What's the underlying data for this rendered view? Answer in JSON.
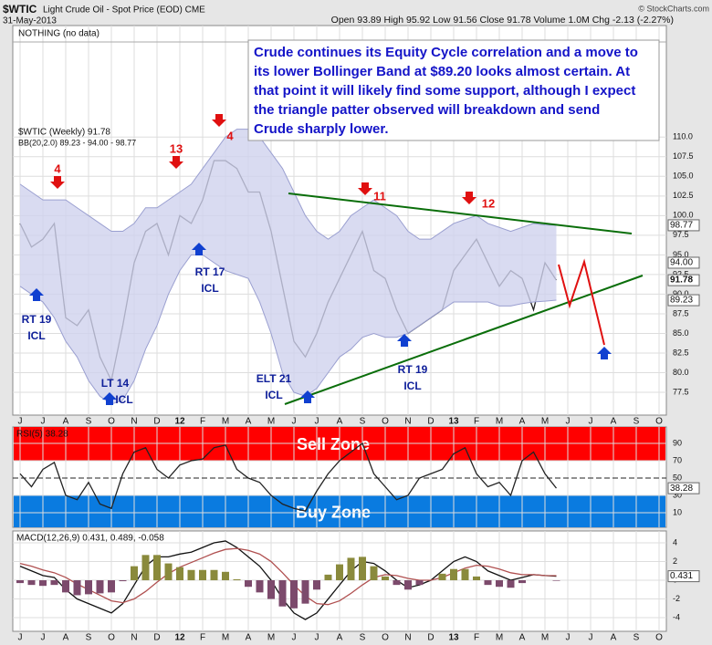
{
  "header": {
    "symbol": "$WTIC",
    "name": "Light Crude Oil - Spot Price (EOD) CME",
    "date": "31-May-2013",
    "quote": "Open 93.89  High 95.92  Low 91.56  Close 91.78  Volume 1.0M  Chg -2.13 (-2.27%)",
    "credit": "© StockCharts.com"
  },
  "note": "NOTHING (no data)",
  "comment": [
    "Crude continues its Equity Cycle correlation and a move to",
    "its lower Bollinger Band at $89.20 looks almost certain.  At",
    "that point it will likely find some support, although I expect",
    "the triangle patter observed will breakdown and send",
    "Crude sharply lower."
  ],
  "cycle_labels": [
    "4",
    "13",
    "4",
    "11",
    "12"
  ],
  "icl_labels": [
    [
      "RT 19",
      "ICL"
    ],
    [
      "LT 14",
      "ICL"
    ],
    [
      "RT 17",
      "ICL"
    ],
    [
      "ELT 21",
      "ICL"
    ],
    [
      "RT 19",
      "ICL"
    ]
  ],
  "chart_data": [
    {
      "type": "line",
      "categories": [
        "J",
        null,
        "J",
        null,
        "A",
        null,
        "S",
        null,
        "O",
        null,
        "N",
        null,
        "D",
        null,
        "12",
        null,
        "F",
        null,
        "M",
        null,
        "A",
        null,
        "M",
        null,
        "J",
        null,
        "J",
        null,
        "A",
        null,
        "S",
        null,
        "O",
        null,
        "N",
        null,
        "D",
        null,
        "13",
        null,
        "F",
        null,
        "M",
        null,
        "A",
        null,
        "M",
        null,
        "J",
        null,
        "J",
        null,
        "A",
        null,
        "S",
        null,
        "O",
        null
      ],
      "series": [
        {
          "name": "$WTIC (Weekly) 91.78",
          "color": "#222222",
          "values": [
            99,
            96,
            97,
            99,
            87,
            86,
            88,
            82,
            79,
            86,
            94,
            98,
            99,
            95,
            100,
            99,
            102,
            107,
            107,
            106,
            103,
            103,
            98,
            91,
            84,
            82,
            85,
            89,
            92,
            95,
            98,
            93,
            92,
            88,
            85,
            86,
            87,
            88,
            93,
            95,
            97,
            94,
            91,
            93,
            92,
            88,
            94,
            91.78,
            null,
            null,
            null,
            null,
            null,
            null,
            null,
            null,
            null,
            null
          ]
        },
        {
          "name": "BB(20,2.0) 89.23 - 94.00 - 98.77",
          "color": "#9a9fd0",
          "upper": [
            104,
            103,
            102,
            102,
            102,
            101,
            100,
            99,
            98,
            98,
            99,
            101,
            101,
            102,
            103,
            104,
            106,
            108,
            110,
            111,
            111,
            110,
            108,
            106,
            103,
            100,
            98,
            97,
            98,
            100,
            101,
            102,
            101,
            100,
            98,
            97,
            97,
            98,
            99,
            99.5,
            100,
            99,
            98.5,
            98,
            98.5,
            99,
            98.8,
            98.77,
            null,
            null,
            null,
            null,
            null,
            null,
            null,
            null,
            null,
            null
          ],
          "lower": [
            91,
            90,
            89,
            87,
            84,
            82,
            79,
            77,
            76,
            76.5,
            79,
            83,
            86,
            90,
            93,
            95,
            95,
            94,
            93,
            92.5,
            92,
            89,
            85,
            80,
            77.5,
            77,
            78,
            80,
            82,
            83,
            84.5,
            85,
            84.5,
            84.5,
            85,
            86,
            87,
            88,
            89,
            89,
            89,
            89,
            88.5,
            88.5,
            88.8,
            89,
            89.1,
            89.23,
            null,
            null,
            null,
            null,
            null,
            null,
            null,
            null,
            null,
            null
          ]
        }
      ],
      "ylim": [
        74.6,
        124.2
      ],
      "yticks": [
        {
          "value": 110,
          "label": "110.0"
        },
        {
          "value": 107.5,
          "label": "107.5"
        },
        {
          "value": 105,
          "label": "105.0"
        },
        {
          "value": 102.5,
          "label": "102.5"
        },
        {
          "value": 100,
          "label": "100.0"
        },
        {
          "value": 97.5,
          "label": "97.5"
        },
        {
          "value": 95,
          "label": "95.0"
        },
        {
          "value": 92.5,
          "label": "92.5"
        },
        {
          "value": 90,
          "label": "90.0"
        },
        {
          "value": 87.5,
          "label": "87.5"
        },
        {
          "value": 85,
          "label": "85.0"
        },
        {
          "value": 82.5,
          "label": "82.5"
        },
        {
          "value": 80,
          "label": "80.0"
        },
        {
          "value": 77.5,
          "label": "77.5"
        }
      ],
      "markers": [
        98.77,
        {
          "value": 94,
          "label": "94.00"
        },
        91.78,
        89.23
      ],
      "grid": true
    },
    {
      "type": "line",
      "title": "RSI(5) 38.28",
      "series": [
        {
          "color": "#222222",
          "values": [
            55,
            40,
            60,
            68,
            30,
            25,
            45,
            20,
            15,
            55,
            80,
            85,
            60,
            50,
            65,
            70,
            72,
            85,
            88,
            60,
            50,
            45,
            30,
            20,
            15,
            12,
            35,
            55,
            70,
            80,
            90,
            55,
            40,
            25,
            30,
            50,
            55,
            60,
            78,
            85,
            55,
            40,
            45,
            30,
            70,
            80,
            55,
            38.28,
            null,
            null,
            null,
            null,
            null,
            null,
            null,
            null,
            null,
            null
          ]
        }
      ],
      "zones": [
        {
          "label": "Sell Zone",
          "from": 70,
          "color": "#ff0000"
        },
        {
          "label": "Buy Zone",
          "to": 30,
          "color": "#0a7be0"
        }
      ],
      "ylim": [
        -6.8,
        108.9
      ],
      "yticks": [
        90,
        70,
        50,
        30,
        10
      ],
      "markers": [
        38.28
      ],
      "grid": true
    },
    {
      "type": "line",
      "title": "MACD(12,26,9) 0.431, 0.489, -0.058",
      "series": [
        {
          "color": "#111111",
          "values": [
            1.5,
            1,
            0.5,
            0.3,
            -1,
            -2,
            -2.5,
            -3,
            -3.5,
            -2.5,
            -0.5,
            1.5,
            2.5,
            2.5,
            2.8,
            3,
            3.5,
            4,
            4.2,
            3.5,
            2.5,
            1.5,
            0,
            -2,
            -3.5,
            -4.2,
            -3.5,
            -2,
            -0.5,
            1,
            2,
            1.8,
            1,
            0,
            -0.8,
            -0.5,
            0,
            1,
            2,
            2.5,
            2,
            1,
            0.5,
            0,
            0.3,
            0.6,
            0.5,
            0.431,
            null,
            null,
            null,
            null,
            null,
            null,
            null,
            null,
            null,
            null
          ]
        },
        {
          "color": "#b05050",
          "values": [
            1.8,
            1.5,
            1.1,
            0.8,
            0.3,
            -0.4,
            -1,
            -1.6,
            -2.2,
            -2.4,
            -2,
            -1.2,
            -0.2,
            0.7,
            1.4,
            1.9,
            2.4,
            2.9,
            3.3,
            3.4,
            3.2,
            2.8,
            2,
            0.8,
            -0.5,
            -1.7,
            -2.5,
            -2.6,
            -2.2,
            -1.4,
            -0.5,
            0.3,
            0.6,
            0.5,
            0.2,
            0,
            0,
            0.3,
            0.8,
            1.3,
            1.6,
            1.5,
            1.2,
            0.8,
            0.6,
            0.6,
            0.5,
            0.489,
            null,
            null,
            null,
            null,
            null,
            null,
            null,
            null,
            null,
            null
          ]
        },
        {
          "color": "#8a8a3c",
          "kind": "histogram",
          "values": [
            -0.3,
            -0.5,
            -0.6,
            -0.5,
            -1.3,
            -1.6,
            -1.5,
            -1.4,
            -1.3,
            -0.1,
            1.5,
            2.7,
            2.7,
            1.8,
            1.4,
            1.1,
            1.1,
            1.1,
            0.9,
            0.1,
            -0.7,
            -1.3,
            -2,
            -2.8,
            -3,
            -2.5,
            -1,
            0.6,
            1.7,
            2.4,
            2.5,
            1.5,
            0.4,
            -0.5,
            -1,
            -0.5,
            0,
            0.7,
            1.2,
            1.2,
            0.4,
            -0.5,
            -0.7,
            -0.8,
            -0.3,
            0,
            0,
            -0.058,
            null,
            null,
            null,
            null,
            null,
            null,
            null,
            null,
            null,
            null
          ]
        }
      ],
      "ylim": [
        -5.46,
        5.27
      ],
      "yticks": [
        4,
        2,
        0,
        -2,
        -4
      ],
      "markers": [
        0.431
      ],
      "grid": true
    }
  ]
}
